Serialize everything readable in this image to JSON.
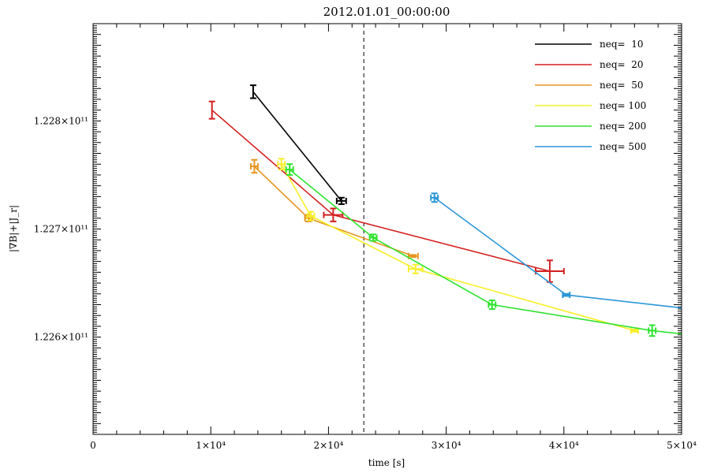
{
  "chart_data": {
    "type": "line",
    "title": "2012.01.01_00:00:00",
    "xlabel": "time [s]",
    "ylabel": "|∇B|+|J_r|",
    "xlim": [
      0,
      50000
    ],
    "ylim": [
      122510000000.0,
      122890000000.0
    ],
    "legend_position": "top-right",
    "grid": false,
    "x_tick_labels": [
      "0",
      "1×10⁴",
      "2×10⁴",
      "3×10⁴",
      "4×10⁴",
      "5×10⁴"
    ],
    "y_tick_labels": [
      "1.226×10¹¹",
      "1.227×10¹¹",
      "1.228×10¹¹"
    ],
    "x_ticks": [
      0,
      10000,
      20000,
      30000,
      40000,
      50000
    ],
    "y_ticks": [
      122600000000.0,
      122700000000.0,
      122800000000.0
    ],
    "reference_line_x": 23000,
    "series": [
      {
        "name": "neq=  10",
        "color": "#000000",
        "points": [
          {
            "x": 13600,
            "y": 122827000000.0,
            "xerr": 0,
            "yerr": 6000000.0
          },
          {
            "x": 21100,
            "y": 122726000000.0,
            "xerr": 400,
            "yerr": 3000000.0
          }
        ]
      },
      {
        "name": "neq=  20",
        "color": "#d42020",
        "points": [
          {
            "x": 10100,
            "y": 122810000000.0,
            "xerr": 0,
            "yerr": 8000000.0
          },
          {
            "x": 20400,
            "y": 122713000000.0,
            "xerr": 800,
            "yerr": 6000000.0
          },
          {
            "x": 38800,
            "y": 122661000000.0,
            "xerr": 1200,
            "yerr": 10000000.0
          }
        ]
      },
      {
        "name": "neq=  50",
        "color": "#e69522",
        "points": [
          {
            "x": 13700,
            "y": 122758000000.0,
            "xerr": 300,
            "yerr": 6000000.0
          },
          {
            "x": 18300,
            "y": 122710000000.0,
            "xerr": 300,
            "yerr": 3000000.0
          },
          {
            "x": 27200,
            "y": 122675000000.0,
            "xerr": 400,
            "yerr": 1000000.0
          }
        ]
      },
      {
        "name": "neq= 100",
        "color": "#f7ef2a",
        "points": [
          {
            "x": 16000,
            "y": 122760000000.0,
            "xerr": 300,
            "yerr": 5000000.0
          },
          {
            "x": 18500,
            "y": 122712000000.0,
            "xerr": 300,
            "yerr": 4000000.0
          },
          {
            "x": 27400,
            "y": 122663000000.0,
            "xerr": 600,
            "yerr": 4000000.0
          },
          {
            "x": 46000,
            "y": 122606000000.0,
            "xerr": 300,
            "yerr": 1000000.0
          }
        ]
      },
      {
        "name": "neq= 200",
        "color": "#2ee32e",
        "points": [
          {
            "x": 16700,
            "y": 122755000000.0,
            "xerr": 300,
            "yerr": 5000000.0
          },
          {
            "x": 23800,
            "y": 122692000000.0,
            "xerr": 300,
            "yerr": 3000000.0
          },
          {
            "x": 33900,
            "y": 122630000000.0,
            "xerr": 300,
            "yerr": 4000000.0
          },
          {
            "x": 47500,
            "y": 122606000000.0,
            "xerr": 300,
            "yerr": 5000000.0
          },
          {
            "x": 50000,
            "y": 122603000000.0,
            "xerr": 0,
            "yerr": 0
          }
        ]
      },
      {
        "name": "neq= 500",
        "color": "#2a96d8",
        "points": [
          {
            "x": 29000,
            "y": 122729000000.0,
            "xerr": 300,
            "yerr": 4000000.0
          },
          {
            "x": 40200,
            "y": 122639000000.0,
            "xerr": 300,
            "yerr": 1000000.0
          },
          {
            "x": 50000,
            "y": 122627000000.0,
            "xerr": 0,
            "yerr": 0
          }
        ]
      }
    ]
  }
}
